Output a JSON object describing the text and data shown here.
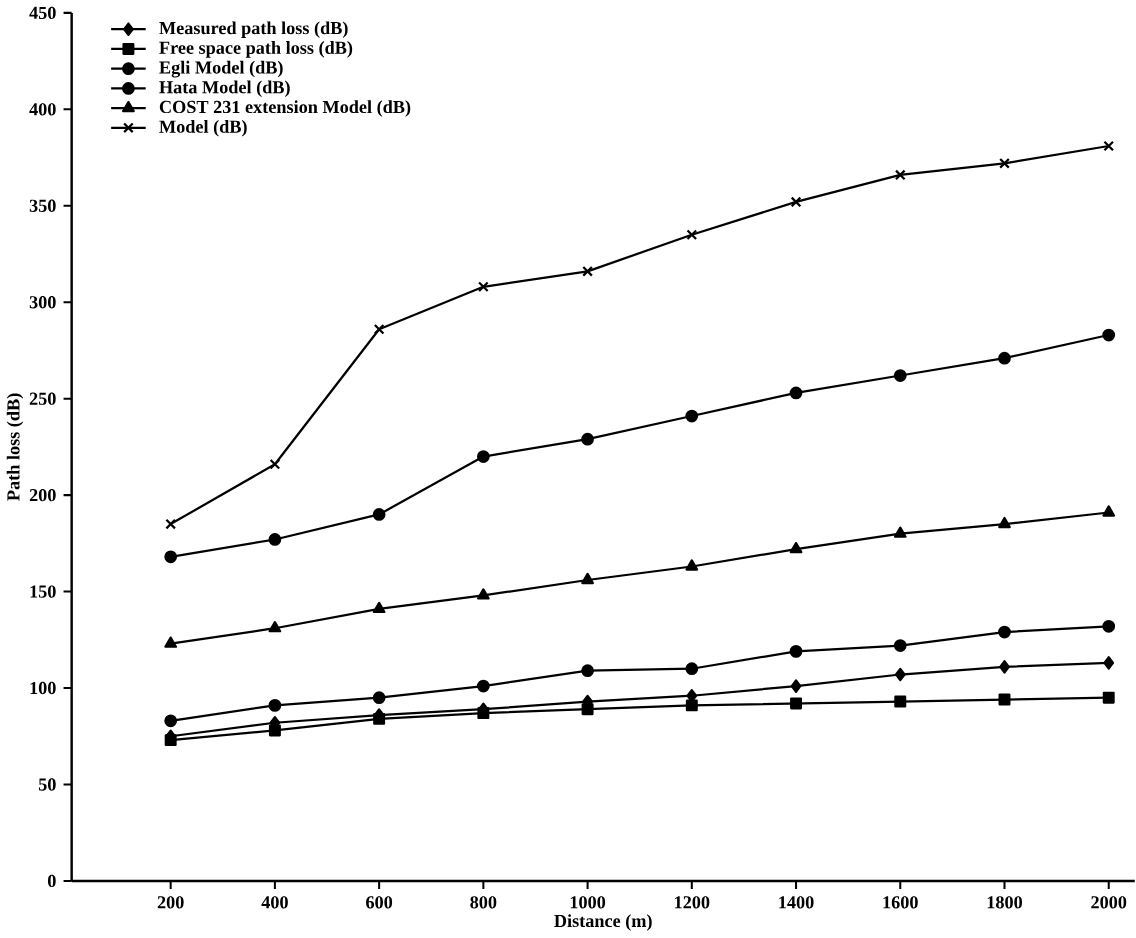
{
  "chart_data": {
    "type": "line",
    "xlabel": "Distance (m)",
    "ylabel": "Path loss (dB)",
    "x": [
      200,
      400,
      600,
      800,
      1000,
      1200,
      1400,
      1600,
      1800,
      2000
    ],
    "xlim": [
      10,
      2050
    ],
    "ylim": [
      0,
      450
    ],
    "xticks": [
      200,
      400,
      600,
      800,
      1000,
      1200,
      1400,
      1600,
      1800,
      2000
    ],
    "yticks": [
      0,
      50,
      100,
      150,
      200,
      250,
      300,
      350,
      400,
      450
    ],
    "grid": false,
    "legend": "top left",
    "series": [
      {
        "name": "Measured path loss (dB)",
        "color": "#000000",
        "marker": "diamond",
        "values": [
          75,
          82,
          86,
          89,
          93,
          96,
          101,
          107,
          111,
          113
        ]
      },
      {
        "name": "Free space path loss (dB)",
        "color": "#000000",
        "marker": "square",
        "values": [
          73,
          78,
          84,
          87,
          89,
          91,
          92,
          93,
          94,
          95
        ]
      },
      {
        "name": "Egli Model (dB)",
        "color": "#000000",
        "marker": "circle",
        "values": [
          168,
          177,
          190,
          220,
          229,
          241,
          253,
          262,
          271,
          283
        ]
      },
      {
        "name": "Hata Model (dB)",
        "color": "#000000",
        "marker": "circle",
        "values": [
          83,
          91,
          95,
          101,
          109,
          110,
          119,
          122,
          129,
          132
        ]
      },
      {
        "name": "COST 231 extension Model (dB)",
        "color": "#000000",
        "marker": "triangle",
        "values": [
          123,
          131,
          141,
          148,
          156,
          163,
          172,
          180,
          185,
          191
        ]
      },
      {
        "name": "Model (dB)",
        "color": "#000000",
        "marker": "cross",
        "values": [
          185,
          216,
          286,
          308,
          316,
          335,
          352,
          366,
          372,
          381
        ]
      }
    ]
  }
}
